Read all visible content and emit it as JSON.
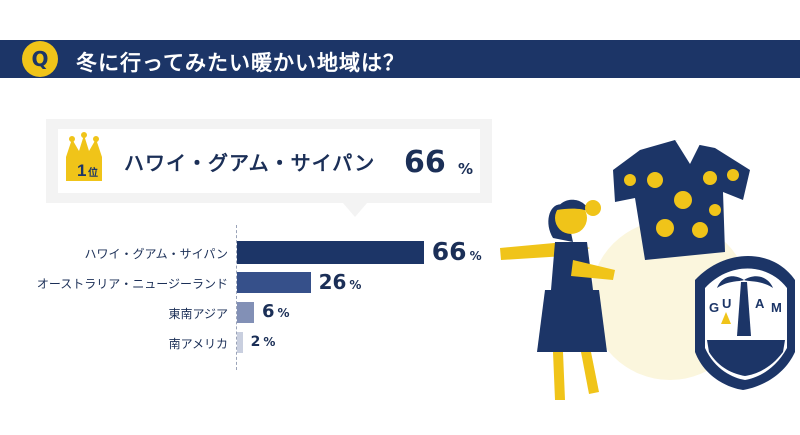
{
  "question": {
    "badge": "Q",
    "title": "冬に行ってみたい暖かい地域は？"
  },
  "highlight": {
    "rank_number": "1",
    "rank_suffix": "位",
    "label": "ハワイ・グアム・サイパン",
    "value": "66",
    "unit": "%"
  },
  "chart_data": {
    "type": "bar",
    "orientation": "horizontal",
    "categories": [
      "ハワイ・グアム・サイパン",
      "オーストラリア・ニュージーランド",
      "東南アジア",
      "南アメリカ"
    ],
    "values": [
      66,
      26,
      6,
      2
    ],
    "value_labels": [
      "66",
      "26",
      "6",
      "2"
    ],
    "unit": "%",
    "title": "",
    "xlabel": "",
    "ylabel": "",
    "xlim": [
      0,
      100
    ],
    "colors": [
      "#1c3567",
      "#36508a",
      "#8290b6",
      "#c9cfdf"
    ],
    "grid": false
  },
  "illustration": {
    "seal_text": [
      "G",
      "U",
      "A",
      "M"
    ]
  },
  "colors": {
    "navy": "#1c3567",
    "yellow": "#f0c419",
    "cream": "#fbf6dd"
  }
}
